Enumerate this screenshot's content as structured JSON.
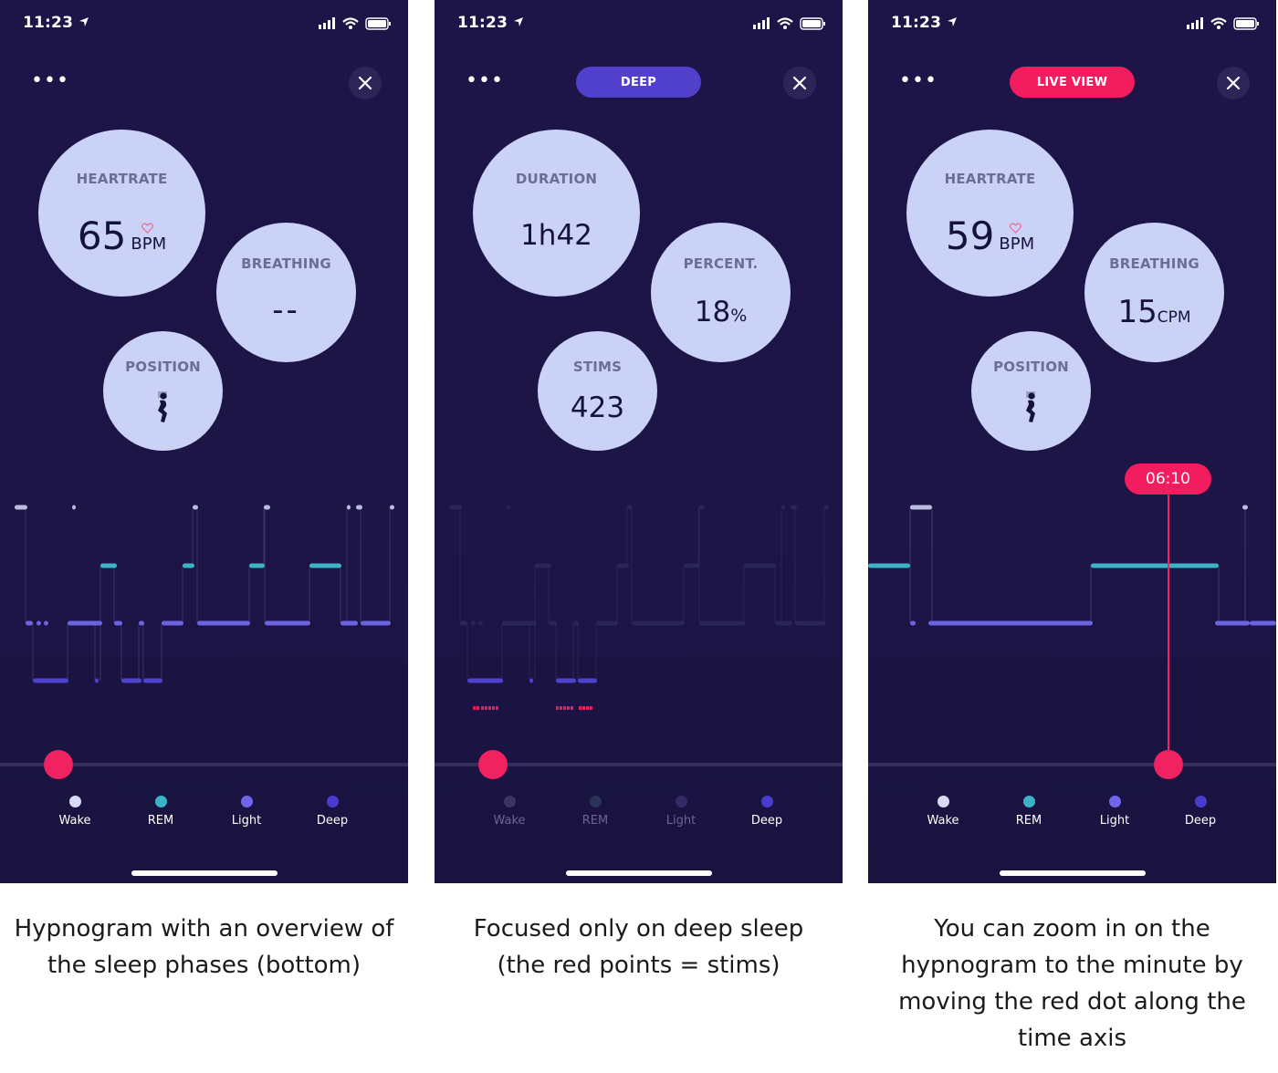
{
  "colors": {
    "bg": "#1d1447",
    "bubble": "#cbd2f8",
    "wake": "#b9bde0",
    "rem": "#3db3c8",
    "light": "#6d62e0",
    "deep": "#5042cc",
    "accent_red": "#f21d5e"
  },
  "phones": [
    {
      "status": {
        "time": "11:23"
      },
      "pill": null,
      "bubbles": {
        "large": {
          "label": "HEARTRATE",
          "value": "65",
          "unit": "BPM",
          "icon": "heart-icon"
        },
        "medium": {
          "label": "BREATHING",
          "value": "--",
          "unit": ""
        },
        "small": {
          "label": "POSITION",
          "icon": "sleeping-person-icon"
        }
      },
      "legend": [
        {
          "label": "Wake"
        },
        {
          "label": "REM"
        },
        {
          "label": "Light"
        },
        {
          "label": "Deep"
        }
      ]
    },
    {
      "status": {
        "time": "11:23"
      },
      "pill": {
        "label": "DEEP"
      },
      "bubbles": {
        "large": {
          "label": "DURATION",
          "value_main": "1h42"
        },
        "medium": {
          "label": "PERCENT.",
          "value": "18",
          "unit": "%"
        },
        "small": {
          "label": "STIMS",
          "value": "423"
        }
      },
      "legend": [
        {
          "label": "Wake"
        },
        {
          "label": "REM"
        },
        {
          "label": "Light"
        },
        {
          "label": "Deep"
        }
      ]
    },
    {
      "status": {
        "time": "11:23"
      },
      "pill": {
        "label": "LIVE VIEW"
      },
      "marker_time": "06:10",
      "bubbles": {
        "large": {
          "label": "HEARTRATE",
          "value": "59",
          "unit": "BPM",
          "icon": "heart-icon"
        },
        "medium": {
          "label": "BREATHING",
          "value": "15",
          "unit": "CPM"
        },
        "small": {
          "label": "POSITION",
          "icon": "sleeping-person-icon"
        }
      },
      "legend": [
        {
          "label": "Wake"
        },
        {
          "label": "REM"
        },
        {
          "label": "Light"
        },
        {
          "label": "Deep"
        }
      ]
    }
  ],
  "captions": [
    [
      "Hypnogram with an overview of",
      "the sleep phases (bottom)"
    ],
    [
      "Focused only on deep sleep",
      "(the red points = stims)"
    ],
    [
      "You can zoom in on the",
      "hypnogram to the minute by",
      "moving the red dot along the",
      "time axis"
    ]
  ]
}
